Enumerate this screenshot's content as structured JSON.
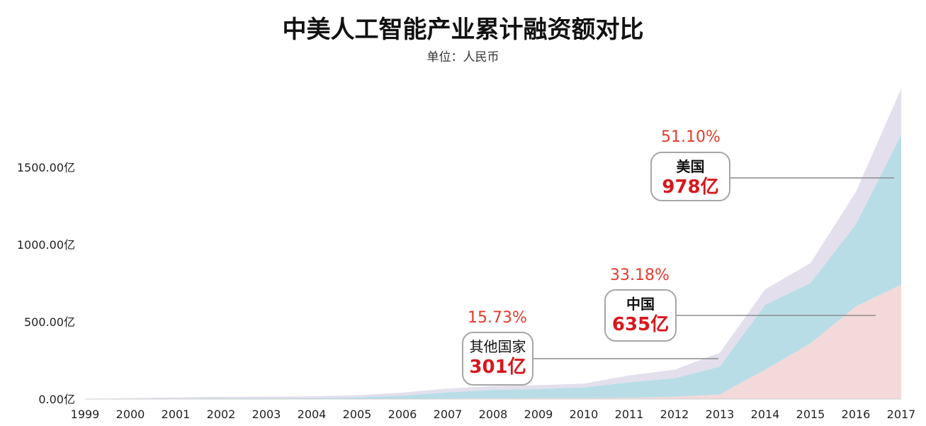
{
  "title": "中美人工智能产业累计融资额对比",
  "subtitle": "单位：人民币",
  "colors": {
    "us": "#e3dfed",
    "china": "#b8dde7",
    "other": "#f3d9d9",
    "annotation": "#e23c2c",
    "value": "#d7181d"
  },
  "chart_data": {
    "type": "area",
    "stacked": true,
    "x": [
      "1999",
      "2000",
      "2001",
      "2002",
      "2003",
      "2004",
      "2005",
      "2006",
      "2007",
      "2008",
      "2009",
      "2010",
      "2011",
      "2012",
      "2013",
      "2014",
      "2015",
      "2016",
      "2017"
    ],
    "ylim": [
      0,
      2000
    ],
    "ytick_labels": [
      "0.00亿",
      "500.00亿",
      "1000.00亿",
      "1500.00亿"
    ],
    "yticks": [
      0,
      500,
      1000,
      1500
    ],
    "grid": false,
    "series": [
      {
        "name": "其他国家",
        "values": [
          0,
          0,
          0,
          0,
          0,
          0,
          0,
          2,
          3,
          4,
          5,
          5,
          8,
          15,
          30,
          190,
          360,
          600,
          740
        ]
      },
      {
        "name": "中国",
        "values": [
          0,
          1,
          3,
          5,
          6,
          6,
          10,
          20,
          40,
          55,
          60,
          70,
          100,
          120,
          180,
          420,
          390,
          530,
          970
        ]
      },
      {
        "name": "美国",
        "values": [
          2,
          5,
          8,
          10,
          10,
          12,
          15,
          20,
          25,
          25,
          25,
          25,
          45,
          55,
          90,
          100,
          130,
          210,
          300
        ]
      }
    ],
    "annotations": [
      {
        "key": "us",
        "name": "美国",
        "value": "978亿",
        "percent": "51.10%"
      },
      {
        "key": "china",
        "name": "中国",
        "value": "635亿",
        "percent": "33.18%"
      },
      {
        "key": "other",
        "name": "其他国家",
        "value": "301亿",
        "percent": "15.73%"
      }
    ]
  }
}
